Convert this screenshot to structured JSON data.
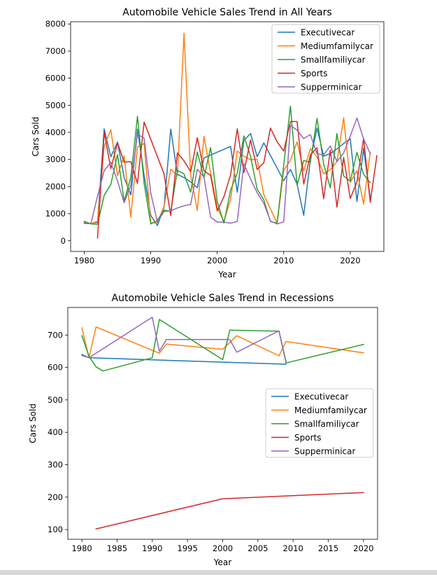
{
  "chart_data": [
    {
      "type": "line",
      "title": "Automobile Vehicle Sales Trend in All Years",
      "xlabel": "Year",
      "ylabel": "Cars Sold",
      "xlim": [
        1977.95,
        2025.05
      ],
      "ylim": [
        -394,
        8084
      ],
      "xticks": [
        1980,
        1990,
        2000,
        2010,
        2020
      ],
      "yticks": [
        0,
        1000,
        2000,
        3000,
        4000,
        5000,
        6000,
        7000,
        8000
      ],
      "legend": "top-right",
      "series": [
        {
          "name": "Executivecar",
          "color": "#1f77b4",
          "points": [
            [
              1980,
              650
            ],
            [
              1981,
              640
            ],
            [
              1982,
              680
            ],
            [
              1983,
              4130
            ],
            [
              1984,
              3100
            ],
            [
              1985,
              3640
            ],
            [
              1986,
              2330
            ],
            [
              1987,
              1690
            ],
            [
              1988,
              4120
            ],
            [
              1989,
              2420
            ],
            [
              1990,
              940
            ],
            [
              1991,
              560
            ],
            [
              1992,
              1240
            ],
            [
              1993,
              4120
            ],
            [
              1994,
              2450
            ],
            [
              1995,
              2330
            ],
            [
              1996,
              2170
            ],
            [
              1997,
              1960
            ],
            [
              1998,
              3060
            ],
            [
              2002,
              3480
            ],
            [
              2003,
              1790
            ],
            [
              2004,
              3700
            ],
            [
              2005,
              3960
            ],
            [
              2006,
              3100
            ],
            [
              2007,
              3610
            ],
            [
              2010,
              2220
            ],
            [
              2011,
              2630
            ],
            [
              2012,
              2090
            ],
            [
              2013,
              940
            ],
            [
              2014,
              2980
            ],
            [
              2015,
              4160
            ],
            [
              2016,
              3120
            ],
            [
              2017,
              3220
            ],
            [
              2018,
              3390
            ],
            [
              2019,
              3590
            ],
            [
              2020,
              3760
            ],
            [
              2021,
              1450
            ],
            [
              2022,
              3410
            ],
            [
              2023,
              1580
            ]
          ]
        },
        {
          "name": "Mediumfamilycar",
          "color": "#ff7f0e",
          "points": [
            [
              1980,
              720
            ],
            [
              1981,
              630
            ],
            [
              1982,
              720
            ],
            [
              1983,
              3480
            ],
            [
              1984,
              4100
            ],
            [
              1985,
              2400
            ],
            [
              1986,
              3130
            ],
            [
              1987,
              870
            ],
            [
              1988,
              3470
            ],
            [
              1989,
              3590
            ],
            [
              1990,
              660
            ],
            [
              1991,
              660
            ],
            [
              1992,
              1270
            ],
            [
              1993,
              2640
            ],
            [
              1994,
              2400
            ],
            [
              1995,
              7660
            ],
            [
              1996,
              2420
            ],
            [
              1997,
              1120
            ],
            [
              1998,
              3850
            ],
            [
              1999,
              2500
            ],
            [
              2000,
              1230
            ],
            [
              2001,
              710
            ],
            [
              2002,
              1530
            ],
            [
              2003,
              3310
            ],
            [
              2004,
              3120
            ],
            [
              2005,
              2990
            ],
            [
              2006,
              3010
            ],
            [
              2007,
              1700
            ],
            [
              2009,
              650
            ],
            [
              2010,
              2600
            ],
            [
              2011,
              2970
            ],
            [
              2012,
              3650
            ],
            [
              2013,
              2580
            ],
            [
              2014,
              3400
            ],
            [
              2015,
              3100
            ],
            [
              2016,
              2470
            ],
            [
              2017,
              2620
            ],
            [
              2018,
              2920
            ],
            [
              2019,
              4540
            ],
            [
              2020,
              2150
            ],
            [
              2021,
              2590
            ],
            [
              2022,
              1350
            ],
            [
              2023,
              3260
            ]
          ]
        },
        {
          "name": "Smallfamiliycar",
          "color": "#2ca02c",
          "points": [
            [
              1980,
              700
            ],
            [
              1981,
              620
            ],
            [
              1982,
              610
            ],
            [
              1983,
              1680
            ],
            [
              1984,
              2080
            ],
            [
              1985,
              3180
            ],
            [
              1986,
              1460
            ],
            [
              1987,
              2340
            ],
            [
              1988,
              4590
            ],
            [
              1989,
              2120
            ],
            [
              1990,
              620
            ],
            [
              1991,
              750
            ],
            [
              1992,
              1130
            ],
            [
              1993,
              1080
            ],
            [
              1994,
              2600
            ],
            [
              1995,
              2470
            ],
            [
              1996,
              1790
            ],
            [
              1997,
              3280
            ],
            [
              1998,
              2330
            ],
            [
              1999,
              3440
            ],
            [
              2000,
              1450
            ],
            [
              2001,
              650
            ],
            [
              2002,
              1870
            ],
            [
              2003,
              2490
            ],
            [
              2004,
              3870
            ],
            [
              2005,
              3120
            ],
            [
              2006,
              1900
            ],
            [
              2007,
              1510
            ],
            [
              2008,
              710
            ],
            [
              2009,
              650
            ],
            [
              2010,
              2800
            ],
            [
              2011,
              4970
            ],
            [
              2012,
              2050
            ],
            [
              2013,
              2960
            ],
            [
              2014,
              2900
            ],
            [
              2015,
              4520
            ],
            [
              2016,
              2830
            ],
            [
              2017,
              1950
            ],
            [
              2018,
              3960
            ],
            [
              2019,
              2390
            ],
            [
              2020,
              2200
            ],
            [
              2021,
              3260
            ],
            [
              2022,
              2460
            ],
            [
              2023,
              2140
            ]
          ]
        },
        {
          "name": "Sports",
          "color": "#d62728",
          "points": [
            [
              1982,
              100
            ],
            [
              1983,
              4000
            ],
            [
              1984,
              2660
            ],
            [
              1985,
              3620
            ],
            [
              1986,
              2900
            ],
            [
              1987,
              2920
            ],
            [
              1988,
              2120
            ],
            [
              1989,
              4380
            ],
            [
              1992,
              2470
            ],
            [
              1993,
              930
            ],
            [
              1994,
              3240
            ],
            [
              1995,
              2950
            ],
            [
              1996,
              2550
            ],
            [
              1997,
              3800
            ],
            [
              1998,
              2580
            ],
            [
              1999,
              2410
            ],
            [
              2000,
              1100
            ],
            [
              2001,
              1620
            ],
            [
              2002,
              2430
            ],
            [
              2003,
              4130
            ],
            [
              2004,
              2520
            ],
            [
              2005,
              3720
            ],
            [
              2006,
              2630
            ],
            [
              2007,
              2880
            ],
            [
              2008,
              4160
            ],
            [
              2009,
              3650
            ],
            [
              2010,
              3310
            ],
            [
              2011,
              4400
            ],
            [
              2012,
              4400
            ],
            [
              2013,
              2090
            ],
            [
              2014,
              3170
            ],
            [
              2015,
              3430
            ],
            [
              2016,
              1550
            ],
            [
              2017,
              3350
            ],
            [
              2018,
              1240
            ],
            [
              2019,
              3070
            ],
            [
              2020,
              1560
            ],
            [
              2021,
              2170
            ],
            [
              2022,
              3780
            ],
            [
              2023,
              1420
            ],
            [
              2024,
              3140
            ]
          ]
        },
        {
          "name": "Supperminicar",
          "color": "#9467bd",
          "points": [
            [
              1980,
              640
            ],
            [
              1981,
              630
            ],
            [
              1982,
              1650
            ],
            [
              1983,
              2590
            ],
            [
              1984,
              2900
            ],
            [
              1985,
              2200
            ],
            [
              1986,
              1400
            ],
            [
              1987,
              2060
            ],
            [
              1988,
              3940
            ],
            [
              1989,
              3780
            ],
            [
              1990,
              1770
            ],
            [
              1991,
              680
            ],
            [
              1992,
              1080
            ],
            [
              1993,
              1100
            ],
            [
              1994,
              1210
            ],
            [
              1995,
              1290
            ],
            [
              1996,
              1340
            ],
            [
              1997,
              2640
            ],
            [
              1998,
              2350
            ],
            [
              1999,
              870
            ],
            [
              2000,
              690
            ],
            [
              2001,
              690
            ],
            [
              2002,
              650
            ],
            [
              2003,
              710
            ],
            [
              2004,
              2840
            ],
            [
              2005,
              2280
            ],
            [
              2006,
              1770
            ],
            [
              2007,
              1380
            ],
            [
              2008,
              730
            ],
            [
              2009,
              620
            ],
            [
              2010,
              700
            ],
            [
              2011,
              4260
            ],
            [
              2012,
              4080
            ],
            [
              2013,
              3770
            ],
            [
              2014,
              3920
            ],
            [
              2015,
              3210
            ],
            [
              2016,
              3170
            ],
            [
              2017,
              3500
            ],
            [
              2018,
              2920
            ],
            [
              2019,
              3240
            ],
            [
              2020,
              3870
            ],
            [
              2021,
              4530
            ],
            [
              2022,
              3760
            ],
            [
              2023,
              3220
            ]
          ]
        }
      ]
    },
    {
      "type": "line",
      "title": "Automobile Vehicle Sales Trend in Recessions",
      "xlabel": "Year",
      "ylabel": "Cars Sold",
      "xlim": [
        1978,
        2022
      ],
      "ylim": [
        70,
        785
      ],
      "xticks": [
        1980,
        1985,
        1990,
        1995,
        2000,
        2005,
        2010,
        2015,
        2020
      ],
      "yticks": [
        100,
        200,
        300,
        400,
        500,
        600,
        700
      ],
      "legend": "center-right",
      "series": [
        {
          "name": "Executivecar",
          "color": "#1f77b4",
          "points": [
            [
              1980,
              640
            ],
            [
              1981,
              630
            ],
            [
              2009,
              610
            ]
          ]
        },
        {
          "name": "Mediumfamilycar",
          "color": "#ff7f0e",
          "points": [
            [
              1980,
              722
            ],
            [
              1981,
              630
            ],
            [
              1982,
              725
            ],
            [
              1991,
              644
            ],
            [
              1992,
              672
            ],
            [
              2000,
              656
            ],
            [
              2002,
              698
            ],
            [
              2008,
              636
            ],
            [
              2009,
              680
            ],
            [
              2020,
              645
            ]
          ]
        },
        {
          "name": "Smallfamiliycar",
          "color": "#2ca02c",
          "points": [
            [
              1980,
              698
            ],
            [
              1981,
              635
            ],
            [
              1982,
              602
            ],
            [
              1983,
              589
            ],
            [
              1990,
              630
            ],
            [
              1991,
              748
            ],
            [
              2000,
              624
            ],
            [
              2001,
              715
            ],
            [
              2008,
              712
            ],
            [
              2009,
              614
            ],
            [
              2020,
              671
            ]
          ]
        },
        {
          "name": "Sports",
          "color": "#d62728",
          "points": [
            [
              1982,
              102
            ],
            [
              2000,
              195
            ],
            [
              2020,
              214
            ]
          ]
        },
        {
          "name": "Supperminicar",
          "color": "#9467bd",
          "points": [
            [
              1980,
              637
            ],
            [
              1981,
              630
            ],
            [
              1990,
              755
            ],
            [
              1991,
              650
            ],
            [
              1992,
              686
            ],
            [
              2001,
              686
            ],
            [
              2002,
              647
            ],
            [
              2008,
              713
            ],
            [
              2009,
              618
            ]
          ]
        }
      ]
    }
  ]
}
